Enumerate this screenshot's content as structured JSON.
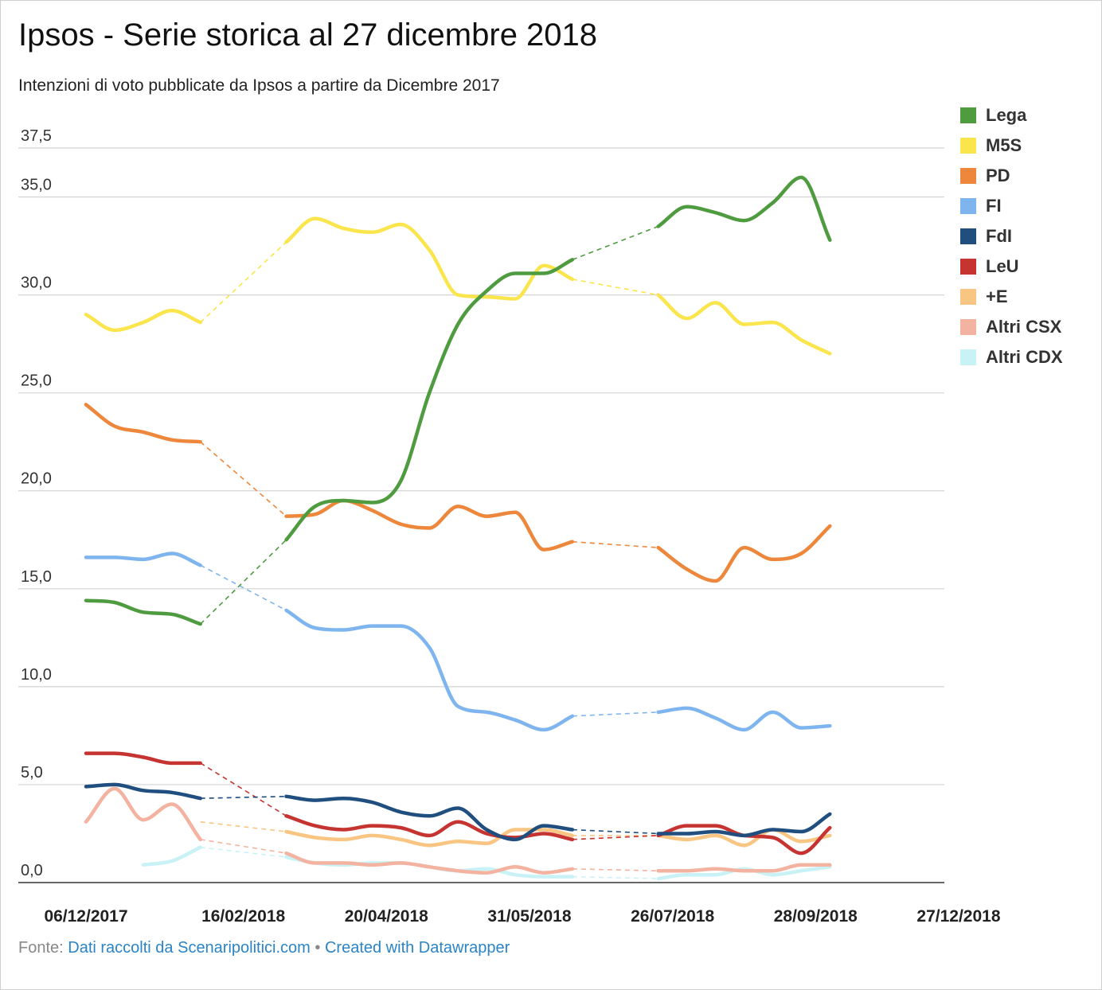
{
  "header": {
    "title": "Ipsos - Serie storica al 27 dicembre 2018",
    "subtitle": "Intenzioni di voto pubblicate da Ipsos a partire da Dicembre 2017"
  },
  "footer": {
    "source_label": "Fonte:",
    "source_link": "Dati raccolti da Scenaripolitici.com",
    "separator": "•",
    "credit_link": "Created with Datawrapper"
  },
  "chart_data": {
    "type": "line",
    "title": "Ipsos - Serie storica al 27 dicembre 2018",
    "subtitle": "Intenzioni di voto pubblicate da Ipsos a partire da Dicembre 2017",
    "xlabel": "",
    "ylabel": "",
    "ylim": [
      0,
      37.5
    ],
    "yticks": [
      "0,0",
      "5,0",
      "10,0",
      "15,0",
      "20,0",
      "25,0",
      "30,0",
      "35,0",
      "37,5"
    ],
    "ytick_values": [
      0,
      5,
      10,
      15,
      20,
      25,
      30,
      35,
      37.5
    ],
    "xticks": [
      "06/12/2017",
      "16/02/2018",
      "20/04/2018",
      "31/05/2018",
      "26/07/2018",
      "28/09/2018",
      "27/12/2018"
    ],
    "xtick_positions": [
      0,
      5.5,
      10.5,
      15.5,
      20.5,
      25.5,
      30.5
    ],
    "x": [
      0,
      1,
      2,
      3,
      4,
      5,
      6,
      7,
      8,
      9,
      10,
      11,
      12,
      13,
      14,
      15,
      16,
      17,
      18,
      19,
      20,
      21,
      22,
      23,
      24,
      25,
      26,
      27,
      28,
      29,
      30
    ],
    "gap_after": [
      5,
      20
    ],
    "gridlines": true,
    "legend_position": "right",
    "series": [
      {
        "name": "Lega",
        "color": "#4f9b3f",
        "values": [
          14.4,
          14.3,
          13.8,
          13.7,
          13.2,
          null,
          null,
          17.5,
          19.2,
          19.5,
          19.4,
          20.5,
          25.0,
          28.5,
          30.2,
          31.1,
          31.1,
          31.8,
          null,
          null,
          33.5,
          34.5,
          34.2,
          33.8,
          34.7,
          36.0,
          32.8,
          null,
          null,
          null,
          null
        ]
      },
      {
        "name": "M5S",
        "color": "#fbe54c",
        "values": [
          29.0,
          28.2,
          28.6,
          29.2,
          28.6,
          null,
          null,
          32.7,
          33.9,
          33.4,
          33.2,
          33.6,
          32.3,
          30.0,
          29.9,
          29.8,
          31.5,
          30.8,
          null,
          null,
          30.0,
          28.8,
          29.6,
          28.5,
          28.6,
          27.7,
          27.0,
          null,
          null,
          null,
          null
        ]
      },
      {
        "name": "PD",
        "color": "#ed873b",
        "values": [
          24.4,
          23.3,
          23.0,
          22.6,
          22.5,
          null,
          null,
          18.7,
          18.8,
          19.5,
          19.0,
          18.3,
          18.1,
          19.2,
          18.7,
          18.9,
          17.0,
          17.4,
          null,
          null,
          17.1,
          16.0,
          15.4,
          17.1,
          16.5,
          16.8,
          18.2,
          null,
          null,
          null,
          null
        ]
      },
      {
        "name": "FI",
        "color": "#7fb5ee",
        "values": [
          16.6,
          16.6,
          16.5,
          16.8,
          16.2,
          null,
          null,
          13.9,
          13.0,
          12.9,
          13.1,
          13.1,
          12.0,
          9.0,
          8.7,
          8.3,
          7.8,
          8.5,
          null,
          null,
          8.7,
          8.9,
          8.4,
          7.8,
          8.7,
          7.9,
          8.0,
          null,
          null,
          null,
          null
        ]
      },
      {
        "name": "FdI",
        "color": "#1f4e7f",
        "values": [
          4.9,
          5.0,
          4.7,
          4.6,
          4.3,
          null,
          null,
          4.4,
          4.2,
          4.3,
          4.1,
          3.6,
          3.4,
          3.8,
          2.7,
          2.2,
          2.9,
          2.7,
          null,
          null,
          2.5,
          2.5,
          2.6,
          2.4,
          2.7,
          2.6,
          3.5,
          null,
          null,
          null,
          null
        ]
      },
      {
        "name": "LeU",
        "color": "#c63431",
        "values": [
          6.6,
          6.6,
          6.4,
          6.1,
          6.1,
          null,
          null,
          3.4,
          2.9,
          2.7,
          2.9,
          2.8,
          2.4,
          3.1,
          2.5,
          2.3,
          2.5,
          2.2,
          null,
          null,
          2.4,
          2.9,
          2.9,
          2.4,
          2.3,
          1.5,
          2.8,
          null,
          null,
          null,
          null
        ]
      },
      {
        "name": "+E",
        "color": "#f9c582",
        "values": [
          null,
          null,
          null,
          null,
          3.1,
          null,
          null,
          2.6,
          2.3,
          2.2,
          2.4,
          2.2,
          1.9,
          2.1,
          2.0,
          2.7,
          2.7,
          2.4,
          null,
          null,
          2.4,
          2.2,
          2.4,
          1.9,
          2.7,
          2.1,
          2.4,
          null,
          null,
          null,
          null
        ]
      },
      {
        "name": "Altri CSX",
        "color": "#f3b3a0",
        "values": [
          3.1,
          4.8,
          3.2,
          4.0,
          2.2,
          null,
          null,
          1.5,
          1.0,
          1.0,
          0.9,
          1.0,
          0.8,
          0.6,
          0.5,
          0.8,
          0.5,
          0.7,
          null,
          null,
          0.6,
          0.6,
          0.7,
          0.6,
          0.6,
          0.9,
          0.9,
          null,
          null,
          null,
          null
        ]
      },
      {
        "name": "Altri CDX",
        "color": "#c9f2f7",
        "values": [
          null,
          null,
          0.9,
          1.1,
          1.8,
          null,
          null,
          1.3,
          1.0,
          0.9,
          1.0,
          1.0,
          0.8,
          0.6,
          0.7,
          0.4,
          0.3,
          0.3,
          null,
          null,
          0.2,
          0.4,
          0.4,
          0.7,
          0.4,
          0.6,
          0.8,
          null,
          null,
          null,
          null
        ]
      }
    ]
  }
}
